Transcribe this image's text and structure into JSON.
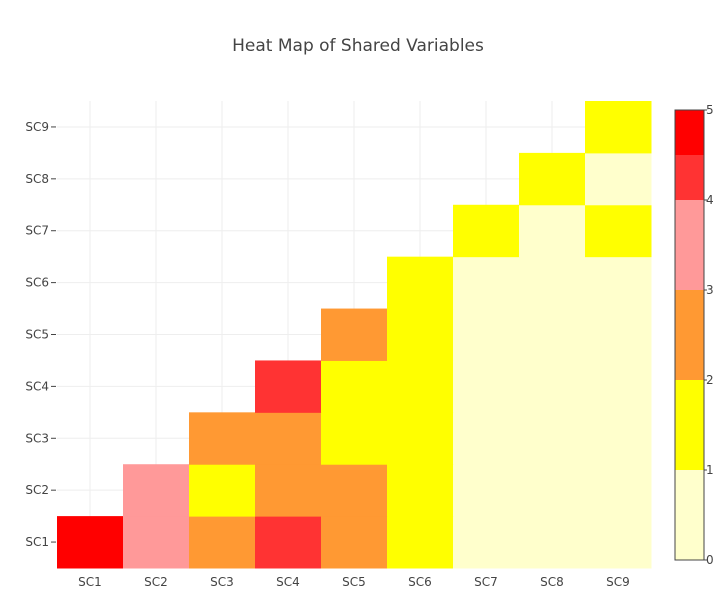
{
  "chart_data": {
    "type": "heatmap",
    "title": "Heat Map of Shared Variables",
    "x": [
      "SC1",
      "SC2",
      "SC3",
      "SC4",
      "SC5",
      "SC6",
      "SC7",
      "SC8",
      "SC9"
    ],
    "y": [
      "SC1",
      "SC2",
      "SC3",
      "SC4",
      "SC5",
      "SC6",
      "SC7",
      "SC8",
      "SC9"
    ],
    "z": [
      [
        5,
        3,
        2,
        4,
        2,
        1,
        0,
        0,
        0
      ],
      [
        null,
        3,
        1,
        2,
        2,
        1,
        0,
        0,
        0
      ],
      [
        null,
        null,
        2,
        2,
        1,
        1,
        0,
        0,
        0
      ],
      [
        null,
        null,
        null,
        4,
        1,
        1,
        0,
        0,
        0
      ],
      [
        null,
        null,
        null,
        null,
        2,
        1,
        0,
        0,
        0
      ],
      [
        null,
        null,
        null,
        null,
        null,
        1,
        0,
        0,
        0
      ],
      [
        null,
        null,
        null,
        null,
        null,
        null,
        1,
        0,
        1
      ],
      [
        null,
        null,
        null,
        null,
        null,
        null,
        null,
        1,
        0
      ],
      [
        null,
        null,
        null,
        null,
        null,
        null,
        null,
        null,
        1
      ]
    ],
    "zlim": [
      0,
      5
    ],
    "colorscale": [
      {
        "from": 0,
        "to": 1,
        "color": "#ffffcc"
      },
      {
        "from": 1,
        "to": 2,
        "color": "#ffff00"
      },
      {
        "from": 2,
        "to": 3,
        "color": "#ff9933"
      },
      {
        "from": 3,
        "to": 4,
        "color": "#ff9999"
      },
      {
        "from": 4,
        "to": 4.5,
        "color": "#ff3333"
      },
      {
        "from": 4.5,
        "to": 5,
        "color": "#ff0000"
      }
    ],
    "colorbar_ticks": [
      "0",
      "1",
      "2",
      "3",
      "4",
      "5"
    ],
    "grid": true,
    "legend": "colorbar-right"
  }
}
